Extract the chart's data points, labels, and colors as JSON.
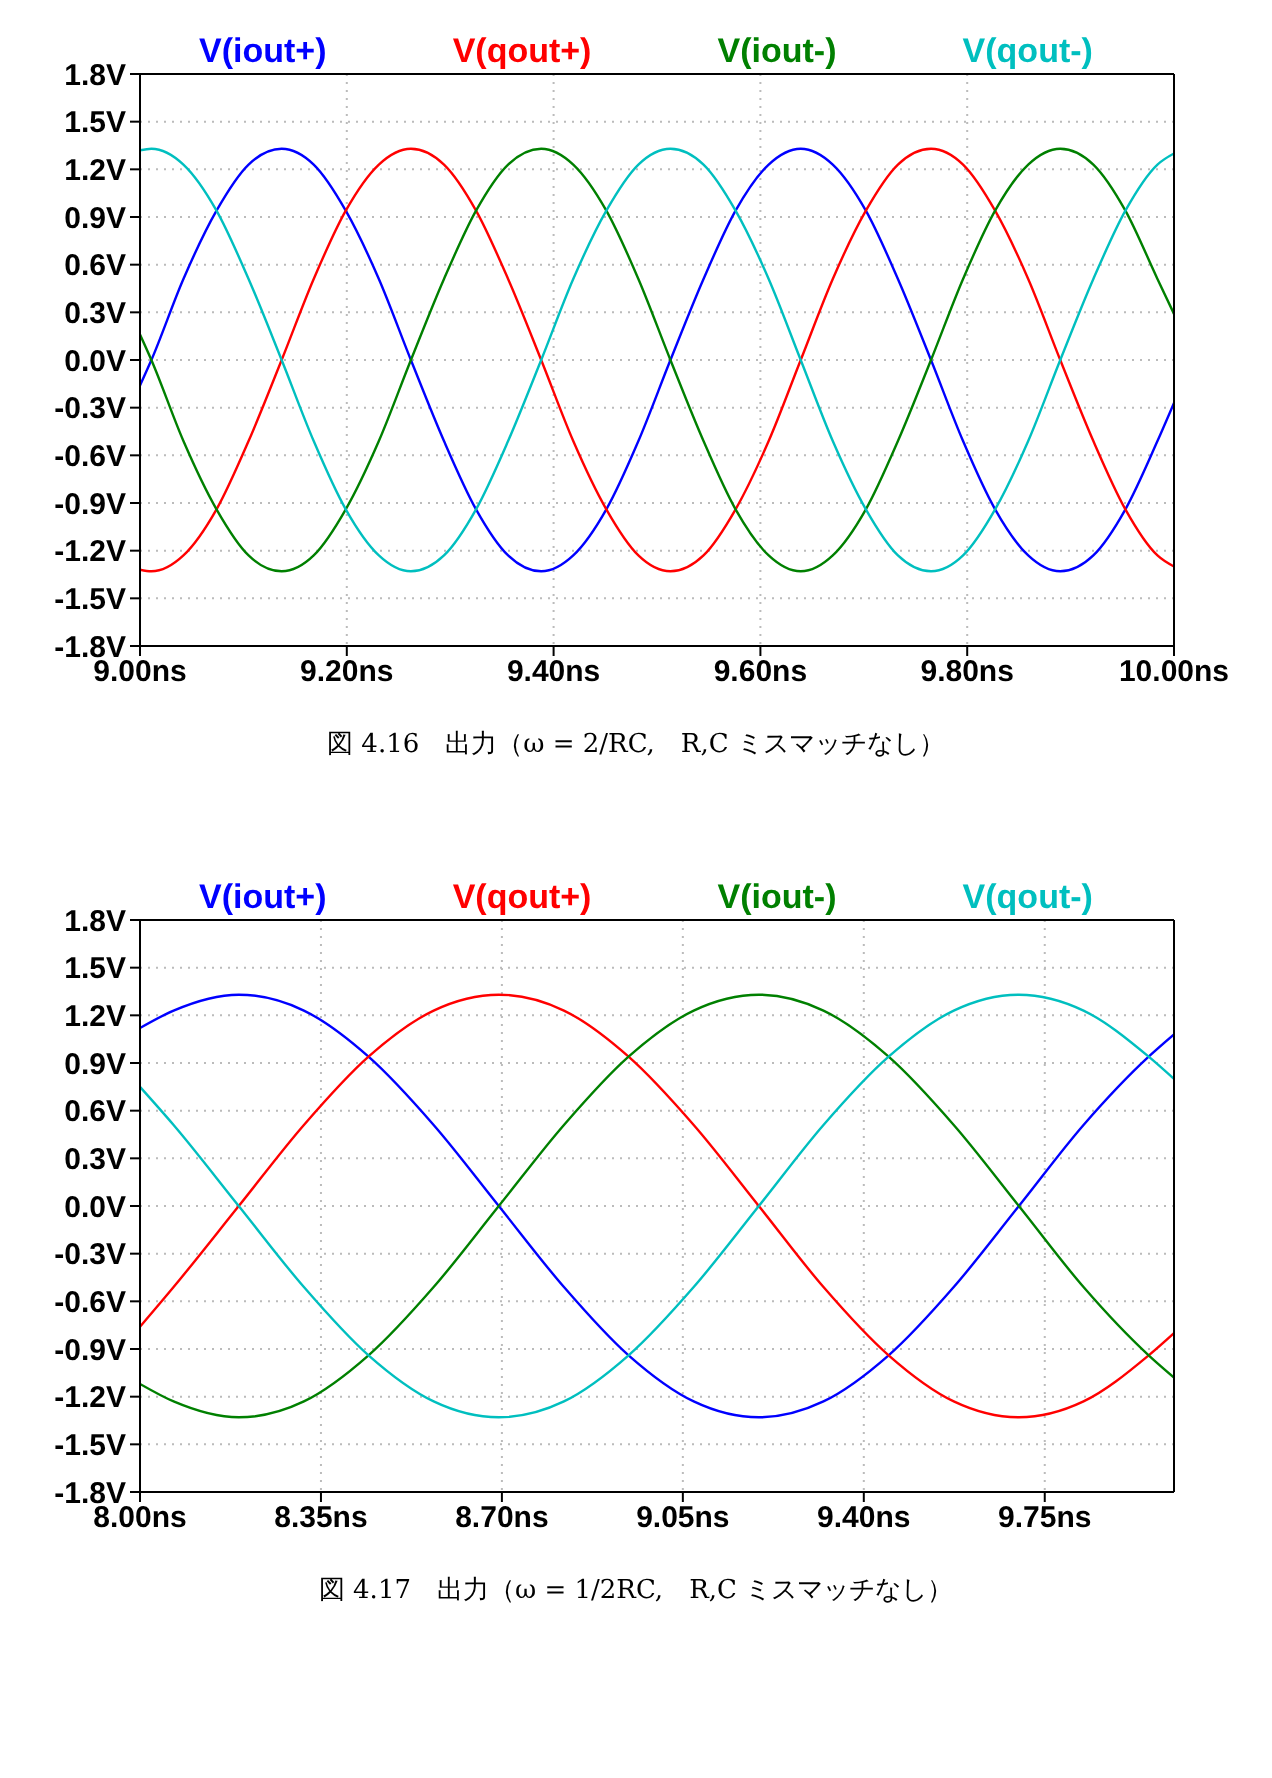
{
  "chart_data": [
    {
      "type": "line",
      "legend": "top",
      "grid": true,
      "marker": "none",
      "line_style": "solid",
      "xlim": [
        9.0,
        10.0
      ],
      "ylim": [
        -1.8,
        1.8
      ],
      "xticks": [
        {
          "value": 9.0,
          "label": "9.00ns"
        },
        {
          "value": 9.2,
          "label": "9.20ns"
        },
        {
          "value": 9.4,
          "label": "9.40ns"
        },
        {
          "value": 9.6,
          "label": "9.60ns"
        },
        {
          "value": 9.8,
          "label": "9.80ns"
        },
        {
          "value": 10.0,
          "label": "10.00ns"
        }
      ],
      "yticks": [
        {
          "value": 1.8,
          "label": "1.8V"
        },
        {
          "value": 1.5,
          "label": "1.5V"
        },
        {
          "value": 1.2,
          "label": "1.2V"
        },
        {
          "value": 0.9,
          "label": "0.9V"
        },
        {
          "value": 0.6,
          "label": "0.6V"
        },
        {
          "value": 0.3,
          "label": "0.3V"
        },
        {
          "value": 0,
          "label": "0.0V"
        },
        {
          "value": -0.3,
          "label": "-0.3V"
        },
        {
          "value": -0.6,
          "label": "-0.6V"
        },
        {
          "value": -0.9,
          "label": "-0.9V"
        },
        {
          "value": -1.2,
          "label": "-1.2V"
        },
        {
          "value": -1.5,
          "label": "-1.5V"
        },
        {
          "value": -1.8,
          "label": "-1.8V"
        }
      ],
      "x": [
        9.0,
        9.011,
        9.042,
        9.074,
        9.105,
        9.137,
        9.168,
        9.199,
        9.231,
        9.262,
        9.294,
        9.325,
        9.356,
        9.388,
        9.419,
        9.451,
        9.482,
        9.513,
        9.545,
        9.576,
        9.608,
        9.639,
        9.67,
        9.702,
        9.733,
        9.765,
        9.796,
        9.827,
        9.859,
        9.89,
        9.922,
        9.953,
        9.984,
        10.0
      ],
      "series": [
        {
          "name": "V(iout+)",
          "color": "#0000ff",
          "values": [
            -0.16,
            0,
            0.51,
            0.94,
            1.23,
            1.33,
            1.23,
            0.94,
            0.51,
            0,
            -0.51,
            -0.94,
            -1.23,
            -1.33,
            -1.23,
            -0.94,
            -0.51,
            0,
            0.51,
            0.94,
            1.23,
            1.33,
            1.23,
            0.94,
            0.51,
            0,
            -0.51,
            -0.94,
            -1.23,
            -1.33,
            -1.23,
            -0.94,
            -0.51,
            -0.27
          ]
        },
        {
          "name": "V(qout+)",
          "color": "#ff0000",
          "values": [
            -1.32,
            -1.33,
            -1.23,
            -0.94,
            -0.51,
            0,
            0.51,
            0.94,
            1.23,
            1.33,
            1.23,
            0.94,
            0.51,
            0,
            -0.51,
            -0.94,
            -1.23,
            -1.33,
            -1.23,
            -0.94,
            -0.51,
            0,
            0.51,
            0.94,
            1.23,
            1.33,
            1.23,
            0.94,
            0.51,
            0,
            -0.51,
            -0.94,
            -1.23,
            -1.3
          ]
        },
        {
          "name": "V(iout-)",
          "color": "#008000",
          "values": [
            0.16,
            0,
            -0.51,
            -0.94,
            -1.23,
            -1.33,
            -1.23,
            -0.94,
            -0.51,
            0,
            0.51,
            0.94,
            1.23,
            1.33,
            1.23,
            0.94,
            0.51,
            0,
            -0.51,
            -0.94,
            -1.23,
            -1.33,
            -1.23,
            -0.94,
            -0.51,
            0,
            0.51,
            0.94,
            1.23,
            1.33,
            1.23,
            0.94,
            0.51,
            0.29
          ]
        },
        {
          "name": "V(qout-)",
          "color": "#00bfbf",
          "values": [
            1.32,
            1.33,
            1.23,
            0.94,
            0.51,
            0,
            -0.51,
            -0.94,
            -1.23,
            -1.33,
            -1.23,
            -0.94,
            -0.51,
            0,
            0.51,
            0.94,
            1.23,
            1.33,
            1.23,
            0.94,
            0.51,
            0,
            -0.51,
            -0.94,
            -1.23,
            -1.33,
            -1.23,
            -0.94,
            -0.51,
            0,
            0.51,
            0.94,
            1.23,
            1.3
          ]
        }
      ],
      "annotations": [
        "図 4.16　出力（ω = 2/RC,　R,C ミスマッチなし）"
      ]
    },
    {
      "type": "line",
      "legend": "top",
      "grid": true,
      "marker": "none",
      "line_style": "solid",
      "xlim": [
        8.0,
        10.0
      ],
      "ylim": [
        -1.8,
        1.8
      ],
      "xticks": [
        {
          "value": 8.0,
          "label": "8.00ns"
        },
        {
          "value": 8.35,
          "label": "8.35ns"
        },
        {
          "value": 8.7,
          "label": "8.70ns"
        },
        {
          "value": 9.05,
          "label": "9.05ns"
        },
        {
          "value": 9.4,
          "label": "9.40ns"
        },
        {
          "value": 9.75,
          "label": "9.75ns"
        }
      ],
      "yticks": [
        {
          "value": 1.8,
          "label": "1.8V"
        },
        {
          "value": 1.5,
          "label": "1.5V"
        },
        {
          "value": 1.2,
          "label": "1.2V"
        },
        {
          "value": 0.9,
          "label": "0.9V"
        },
        {
          "value": 0.6,
          "label": "0.6V"
        },
        {
          "value": 0.3,
          "label": "0.3V"
        },
        {
          "value": 0,
          "label": "0.0V"
        },
        {
          "value": -0.3,
          "label": "-0.3V"
        },
        {
          "value": -0.6,
          "label": "-0.6V"
        },
        {
          "value": -0.9,
          "label": "-0.9V"
        },
        {
          "value": -1.2,
          "label": "-1.2V"
        },
        {
          "value": -1.5,
          "label": "-1.5V"
        },
        {
          "value": -1.8,
          "label": "-1.8V"
        }
      ],
      "x": [
        8.0,
        8.065,
        8.191,
        8.317,
        8.442,
        8.568,
        8.694,
        8.82,
        8.945,
        9.071,
        9.197,
        9.322,
        9.448,
        9.574,
        9.7,
        9.825,
        9.951,
        10.0
      ],
      "series": [
        {
          "name": "V(iout+)",
          "color": "#0000ff",
          "values": [
            1.12,
            1.23,
            1.33,
            1.23,
            0.94,
            0.51,
            0,
            -0.51,
            -0.94,
            -1.23,
            -1.33,
            -1.23,
            -0.94,
            -0.51,
            0,
            0.51,
            0.94,
            1.08
          ]
        },
        {
          "name": "V(qout+)",
          "color": "#ff0000",
          "values": [
            -0.76,
            -0.51,
            0,
            0.51,
            0.94,
            1.23,
            1.33,
            1.23,
            0.94,
            0.51,
            0,
            -0.51,
            -0.94,
            -1.23,
            -1.33,
            -1.23,
            -0.94,
            -0.8
          ]
        },
        {
          "name": "V(iout-)",
          "color": "#008000",
          "values": [
            -1.12,
            -1.23,
            -1.33,
            -1.23,
            -0.94,
            -0.51,
            0,
            0.51,
            0.94,
            1.23,
            1.33,
            1.23,
            0.94,
            0.51,
            0,
            -0.51,
            -0.94,
            -1.08
          ]
        },
        {
          "name": "V(qout-)",
          "color": "#00bfbf",
          "values": [
            0.75,
            0.51,
            0,
            -0.51,
            -0.94,
            -1.23,
            -1.33,
            -1.23,
            -0.94,
            -0.51,
            0,
            0.51,
            0.94,
            1.23,
            1.33,
            1.23,
            0.94,
            0.8
          ]
        }
      ],
      "annotations": [
        "図 4.17　出力（ω = 1/2RC,　R,C ミスマッチなし）"
      ]
    }
  ]
}
